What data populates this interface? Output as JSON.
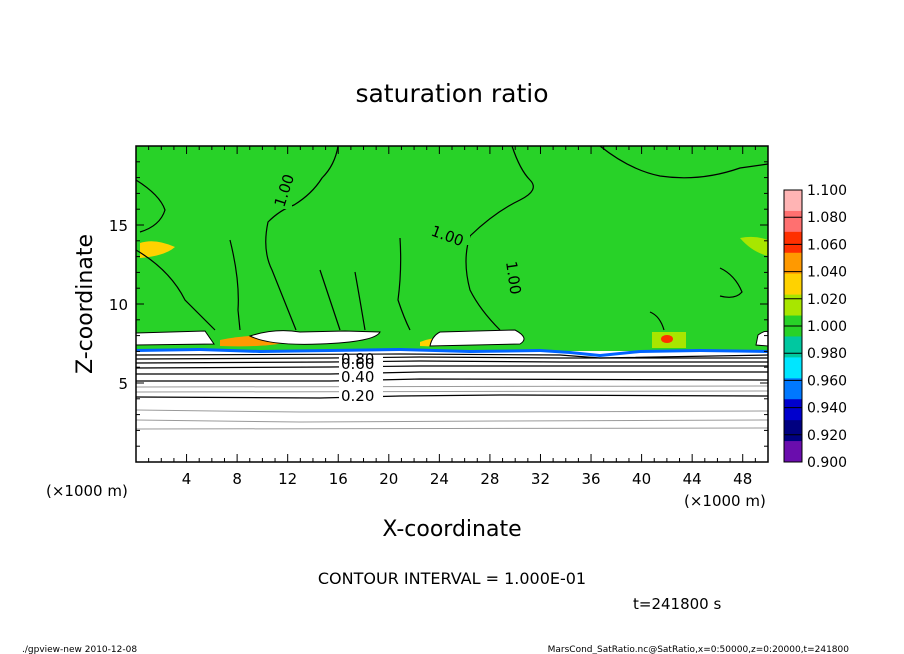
{
  "chart_data": {
    "type": "heatmap",
    "title": "saturation ratio",
    "xlabel": "X-coordinate",
    "ylabel": "Z-coordinate",
    "x_unit": "(×1000 m)",
    "y_unit": "(×1000 m)",
    "xlim": [
      0,
      50
    ],
    "ylim": [
      0,
      20
    ],
    "x_ticks": [
      "4",
      "8",
      "12",
      "16",
      "20",
      "24",
      "28",
      "32",
      "36",
      "40",
      "44",
      "48"
    ],
    "y_ticks": [
      "5",
      "10",
      "15"
    ],
    "colorbar": {
      "levels": [
        "1.100",
        "1.080",
        "1.060",
        "1.040",
        "1.020",
        "1.000",
        "0.980",
        "0.960",
        "0.940",
        "0.920",
        "0.900"
      ],
      "colors": [
        "#ffb4b4",
        "#ff7070",
        "#ff3000",
        "#ff9900",
        "#ffd200",
        "#a8e600",
        "#28d228",
        "#00c8a0",
        "#00e6ff",
        "#0078ff",
        "#0000cd",
        "#000080",
        "#6a0dad"
      ]
    },
    "contour_labels": [
      "1.00",
      "1.00",
      "1.00",
      "0.80",
      "0.60",
      "0.40",
      "0.20"
    ],
    "contour_interval_text": "CONTOUR INTERVAL = 1.000E-01",
    "time_text": "t=241800 s"
  },
  "footer": {
    "left": "./gpview-new   2010-12-08",
    "right": "MarsCond_SatRatio.nc@SatRatio,x=0:50000,z=0:20000,t=241800"
  }
}
